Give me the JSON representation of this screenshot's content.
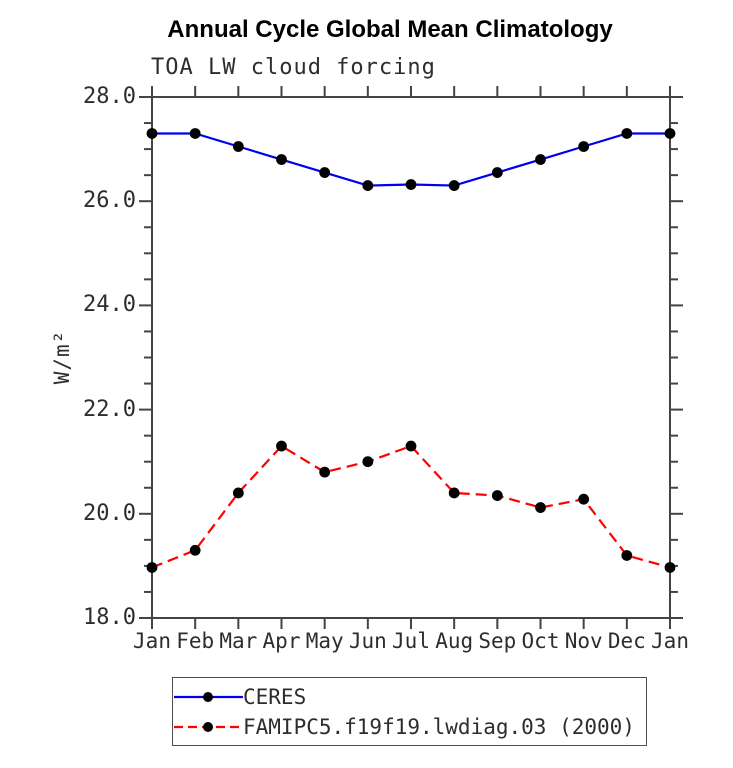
{
  "chart_data": {
    "type": "line",
    "title": "Annual Cycle Global Mean Climatology",
    "subtitle": "TOA LW cloud forcing",
    "ylabel": "W/m²",
    "xlabel": "",
    "x_categories": [
      "Jan",
      "Feb",
      "Mar",
      "Apr",
      "May",
      "Jun",
      "Jul",
      "Aug",
      "Sep",
      "Oct",
      "Nov",
      "Dec",
      "Jan"
    ],
    "ylim": [
      18.0,
      28.0
    ],
    "yticks_major": [
      18,
      20,
      22,
      24,
      26,
      28
    ],
    "ytick_labels": [
      "18.0",
      "20.0",
      "22.0",
      "24.0",
      "26.0",
      "28.0"
    ],
    "ytick_minor_step": 0.5,
    "grid": false,
    "legend_position": "bottom",
    "axis_color": "#444444",
    "marker": {
      "shape": "circle",
      "color": "#000000"
    },
    "series": [
      {
        "name": "CERES",
        "color": "#0000ee",
        "line_style": "solid",
        "values": [
          27.3,
          27.3,
          27.05,
          26.8,
          26.55,
          26.3,
          26.32,
          26.3,
          26.55,
          26.8,
          27.05,
          27.3,
          27.3
        ]
      },
      {
        "name": "FAMIPC5.f19f19.lwdiag.03 (2000)",
        "color": "#ff0000",
        "line_style": "dashed",
        "values": [
          18.97,
          19.3,
          20.4,
          21.3,
          20.8,
          21.0,
          21.3,
          20.4,
          20.35,
          20.12,
          20.28,
          19.2,
          18.97
        ]
      }
    ]
  }
}
